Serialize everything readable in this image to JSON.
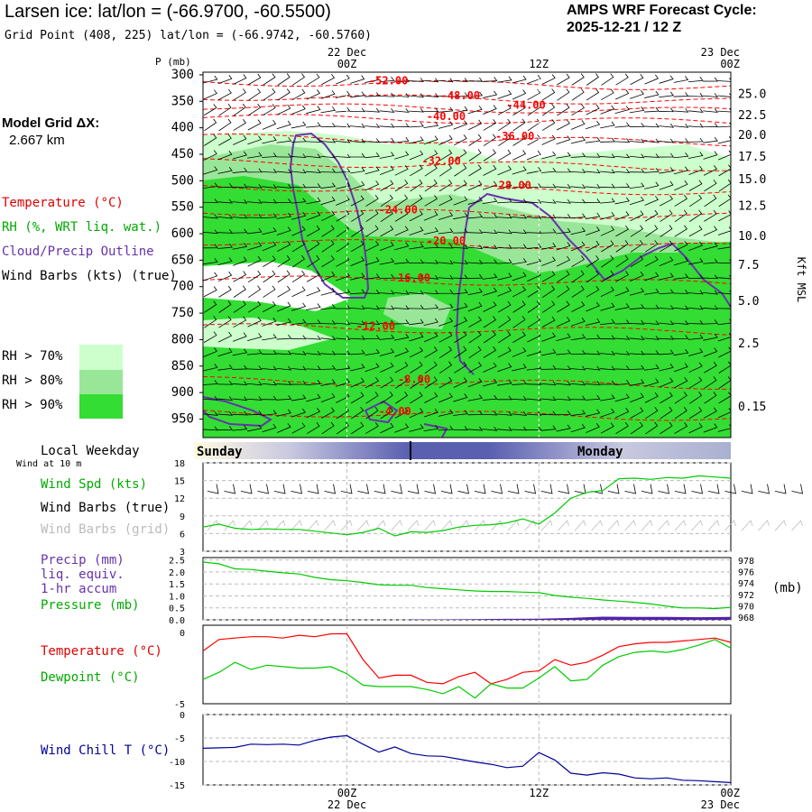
{
  "header": {
    "title": "Larsen ice:  lat/lon = (-66.9700, -60.5500)",
    "subtitle": "Grid Point (408, 225) lat/lon = (-66.9742, -60.5760)",
    "cycle_line1": "AMPS WRF Forecast Cycle:",
    "cycle_line2": "2025-12-21 / 12  Z"
  },
  "model_grid": {
    "label": "Model Grid ΔX:",
    "value": "2.667 km"
  },
  "legend": {
    "temperature": "Temperature (°C)",
    "rh": "RH (%, WRT liq. wat.)",
    "cloud": "Cloud/Precip Outline",
    "wind": "Wind Barbs (kts) (true)",
    "rh_levels": [
      {
        "label": "RH > 70%",
        "color": "#ccffcc"
      },
      {
        "label": "RH > 80%",
        "color": "#99e699"
      },
      {
        "label": "RH > 90%",
        "color": "#33dd33"
      }
    ]
  },
  "time_axis": {
    "top_labels": [
      {
        "date": "22 Dec",
        "time": "00Z",
        "t": 12
      },
      {
        "date": "",
        "time": "12Z",
        "t": 24
      },
      {
        "date": "23 Dec",
        "time": "00Z",
        "t": 36
      }
    ],
    "bottom_labels": [
      {
        "time": "00Z",
        "date": "22 Dec",
        "t": 12
      },
      {
        "time": "12Z",
        "date": "",
        "t": 24
      },
      {
        "time": "00Z",
        "date": "23 Dec",
        "t": 36
      }
    ],
    "range": [
      3,
      36
    ]
  },
  "weekday": {
    "title": "Local Weekday",
    "days": [
      "Sunday",
      "Monday"
    ]
  },
  "colors": {
    "temp": "#ff0000",
    "dew": "#00cc00",
    "rh90": "#33dd33",
    "cloud": "#6633aa",
    "chill": "#000099",
    "precip": "#5522aa",
    "grid": "#bbbbbb"
  },
  "chart_data": [
    {
      "type": "area",
      "name": "cross-section",
      "ylabel": "P (mb)",
      "right_label": "Kft MSL",
      "pressure_ticks": [
        300,
        350,
        400,
        450,
        500,
        550,
        600,
        650,
        700,
        750,
        800,
        850,
        900,
        950
      ],
      "height_ticks": [
        {
          "label": "25.0",
          "p": 337
        },
        {
          "label": "22.5",
          "p": 377
        },
        {
          "label": "20.0",
          "p": 414
        },
        {
          "label": "17.5",
          "p": 455
        },
        {
          "label": "15.0",
          "p": 498
        },
        {
          "label": "12.5",
          "p": 548
        },
        {
          "label": "10.0",
          "p": 605
        },
        {
          "label": "7.5",
          "p": 660
        },
        {
          "label": "5.0",
          "p": 728
        },
        {
          "label": "2.5",
          "p": 808
        },
        {
          "label": "0.15",
          "p": 927
        }
      ],
      "ylim": [
        295,
        985
      ],
      "isotherm_labels": [
        {
          "text": "-52.00",
          "t": 14.6,
          "p": 318
        },
        {
          "text": "-48.00",
          "t": 19.1,
          "p": 346
        },
        {
          "text": "-44.00",
          "t": 23.2,
          "p": 364
        },
        {
          "text": "-40.00",
          "t": 18.2,
          "p": 385
        },
        {
          "text": "-36.00",
          "t": 22.5,
          "p": 423
        },
        {
          "text": "-32.00",
          "t": 17.9,
          "p": 470
        },
        {
          "text": "-28.00",
          "t": 22.3,
          "p": 516
        },
        {
          "text": "-24.00",
          "t": 15.2,
          "p": 562
        },
        {
          "text": "-20.00",
          "t": 18.2,
          "p": 620
        },
        {
          "text": "-16.00",
          "t": 16.0,
          "p": 690
        },
        {
          "text": "-12.00",
          "t": 13.8,
          "p": 781
        },
        {
          "text": "-8.00",
          "t": 16.2,
          "p": 882
        },
        {
          "text": "-4.00",
          "t": 15.0,
          "p": 942
        }
      ]
    },
    {
      "type": "line",
      "name": "wind",
      "ylabel": "Wind Spd (kts)",
      "y_ticks": [
        3,
        6,
        9,
        12,
        15,
        18
      ],
      "ylim": [
        3,
        18
      ],
      "x": [
        3,
        4,
        5,
        6,
        7,
        8,
        9,
        10,
        11,
        12,
        13,
        14,
        15,
        16,
        17,
        18,
        19,
        20,
        21,
        22,
        23,
        24,
        25,
        26,
        27,
        28,
        29,
        30,
        31,
        32,
        33,
        34,
        35,
        36
      ],
      "values": [
        7.1,
        7.6,
        6.9,
        6.7,
        6.8,
        6.7,
        6.7,
        6.4,
        6.1,
        5.8,
        6.2,
        6.9,
        5.6,
        6.3,
        6.2,
        6.5,
        7.1,
        7.4,
        7.5,
        7.8,
        8.5,
        7.6,
        9.5,
        12.0,
        13.0,
        13.3,
        15.3,
        15.4,
        15.2,
        15.5,
        15.4,
        15.8,
        15.6,
        15.4
      ]
    },
    {
      "type": "line",
      "name": "precip-pressure",
      "y_ticks_left": [
        "0.0",
        "0.5",
        "1.0",
        "1.5",
        "2.0",
        "2.5"
      ],
      "y_ticks_right": [
        "968",
        "970",
        "972",
        "974",
        "976",
        "978"
      ],
      "right_unit": "(mb)",
      "ylim_left": [
        0,
        2.6
      ],
      "ylim_right": [
        967.5,
        978.5
      ],
      "pressure_x": [
        3,
        4,
        5,
        6,
        7,
        8,
        9,
        10,
        11,
        12,
        13,
        14,
        15,
        16,
        17,
        18,
        19,
        20,
        21,
        22,
        23,
        24,
        25,
        26,
        27,
        28,
        29,
        30,
        31,
        32,
        33,
        34,
        35,
        36
      ],
      "pressure": [
        977.7,
        977.4,
        976.5,
        976.4,
        976.1,
        975.8,
        975.6,
        975.0,
        974.6,
        974.4,
        974.1,
        973.7,
        973.6,
        973.6,
        973.2,
        973.0,
        972.8,
        972.6,
        972.5,
        972.5,
        972.4,
        972.3,
        971.8,
        971.5,
        971.3,
        971.0,
        970.8,
        970.6,
        970.3,
        969.9,
        969.6,
        969.6,
        969.5,
        969.7
      ],
      "precip_x": [
        16,
        18,
        20,
        22,
        24,
        26,
        28,
        30,
        32,
        34,
        36
      ],
      "precip": [
        0.02,
        0.02,
        0.03,
        0.04,
        0.05,
        0.08,
        0.13,
        0.12,
        0.12,
        0.11,
        0.12
      ]
    },
    {
      "type": "line",
      "name": "temp-dew",
      "y_ticks": [
        "-5",
        "0"
      ],
      "ylim": [
        -5,
        0.5
      ],
      "x": [
        3,
        4,
        5,
        6,
        7,
        8,
        9,
        10,
        11,
        12,
        13,
        14,
        15,
        16,
        17,
        18,
        19,
        20,
        21,
        22,
        23,
        24,
        25,
        26,
        27,
        28,
        29,
        30,
        31,
        32,
        33,
        34,
        35,
        36
      ],
      "temperature": [
        -1.3,
        -0.5,
        -0.4,
        -0.3,
        -0.3,
        -0.4,
        -0.2,
        -0.3,
        -0.1,
        -0.1,
        -1.9,
        -3.2,
        -3.0,
        -3.0,
        -3.5,
        -3.6,
        -3.1,
        -2.8,
        -3.6,
        -3.3,
        -2.8,
        -2.7,
        -1.9,
        -2.3,
        -2.1,
        -1.6,
        -1.0,
        -0.8,
        -0.7,
        -0.7,
        -0.6,
        -0.5,
        -0.4,
        -0.7
      ],
      "dewpoint": [
        -3.3,
        -2.8,
        -2.1,
        -2.6,
        -2.3,
        -2.4,
        -2.5,
        -2.5,
        -2.4,
        -2.9,
        -3.7,
        -3.8,
        -3.8,
        -3.8,
        -4.0,
        -4.3,
        -3.8,
        -4.6,
        -3.6,
        -3.9,
        -3.9,
        -3.2,
        -2.4,
        -3.4,
        -3.3,
        -2.3,
        -1.7,
        -1.4,
        -1.3,
        -1.4,
        -1.2,
        -0.9,
        -0.5,
        -1.1
      ]
    },
    {
      "type": "line",
      "name": "wind-chill",
      "ylabel": "Wind Chill T (°C)",
      "y_ticks": [
        "0",
        "-5",
        "-10",
        "-15"
      ],
      "ylim": [
        -15,
        0
      ],
      "x": [
        3,
        4,
        5,
        6,
        7,
        8,
        9,
        10,
        11,
        12,
        13,
        14,
        15,
        16,
        17,
        18,
        19,
        20,
        21,
        22,
        23,
        24,
        25,
        26,
        27,
        28,
        29,
        30,
        31,
        32,
        33,
        34,
        35,
        36
      ],
      "values": [
        -7.2,
        -7.1,
        -7.0,
        -6.3,
        -6.4,
        -6.3,
        -6.5,
        -5.5,
        -4.8,
        -4.5,
        -6.3,
        -8.0,
        -6.9,
        -8.3,
        -8.8,
        -8.9,
        -9.5,
        -10.1,
        -10.6,
        -11.3,
        -11.0,
        -8.1,
        -9.7,
        -12.5,
        -12.9,
        -12.4,
        -12.7,
        -13.5,
        -13.7,
        -13.5,
        -14.0,
        -14.1,
        -14.3,
        -14.5
      ]
    }
  ],
  "panel_labels": {
    "wind_at_10m": "Wind at 10 m",
    "wind_spd": "Wind Spd (kts)",
    "wind_barbs_true": "Wind Barbs (true)",
    "wind_barbs_grid": "Wind Barbs (grid)",
    "precip1": "Precip (mm)",
    "precip2": "liq. equiv.",
    "precip3": "1-hr accum",
    "pressure": "Pressure (mb)",
    "temperature": "Temperature (°C)",
    "dewpoint": "Dewpoint (°C)"
  }
}
